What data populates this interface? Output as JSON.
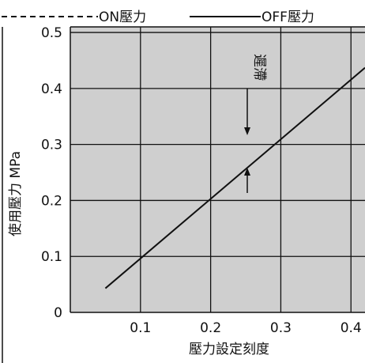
{
  "chart_data": {
    "type": "line",
    "legend": [
      {
        "label": "ON壓力",
        "style": "dashed"
      },
      {
        "label": "OFF壓力",
        "style": "solid"
      }
    ],
    "xlabel": "壓力設定刻度",
    "ylabel": "使用壓力  MPa",
    "x_ticks": [
      "0.1",
      "0.2",
      "0.3",
      "0.4"
    ],
    "y_ticks": [
      "0",
      "0.1",
      "0.2",
      "0.3",
      "0.4",
      "0.5"
    ],
    "xlim": [
      0,
      0.42
    ],
    "ylim": [
      0,
      0.51
    ],
    "grid": true,
    "series": [
      {
        "name": "OFF壓力",
        "x": [
          0.05,
          0.42
        ],
        "y": [
          0.043,
          0.437
        ]
      }
    ],
    "annotations": [
      {
        "text": "遲滯",
        "x": 0.25,
        "y_top": 0.33,
        "y_bottom": 0.215
      }
    ],
    "colors": {
      "plot_bg": "#cfcfcf",
      "line": "#111111",
      "grid": "#111111"
    }
  }
}
